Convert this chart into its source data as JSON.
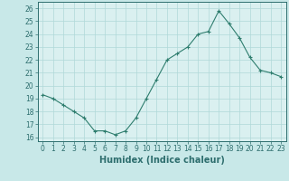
{
  "x": [
    0,
    1,
    2,
    3,
    4,
    5,
    6,
    7,
    8,
    9,
    10,
    11,
    12,
    13,
    14,
    15,
    16,
    17,
    18,
    19,
    20,
    21,
    22,
    23
  ],
  "y": [
    19.3,
    19.0,
    18.5,
    18.0,
    17.5,
    16.5,
    16.5,
    16.2,
    16.5,
    17.5,
    19.0,
    20.5,
    22.0,
    22.5,
    23.0,
    24.0,
    24.2,
    25.8,
    24.8,
    23.7,
    22.2,
    21.2,
    21.0,
    20.7
  ],
  "line_color": "#2e7d6e",
  "marker": "+",
  "marker_size": 3,
  "marker_lw": 0.8,
  "line_width": 0.8,
  "bg_color": "#c8e8e8",
  "plot_bg_color": "#daf0f0",
  "grid_color": "#b0d8d8",
  "xlabel": "Humidex (Indice chaleur)",
  "ylabel_ticks": [
    16,
    17,
    18,
    19,
    20,
    21,
    22,
    23,
    24,
    25,
    26
  ],
  "xlim": [
    -0.5,
    23.5
  ],
  "ylim": [
    15.7,
    26.5
  ],
  "tick_color": "#2e6e6e",
  "label_color": "#2e6e6e",
  "tick_fontsize": 5.5,
  "xlabel_fontsize": 7
}
